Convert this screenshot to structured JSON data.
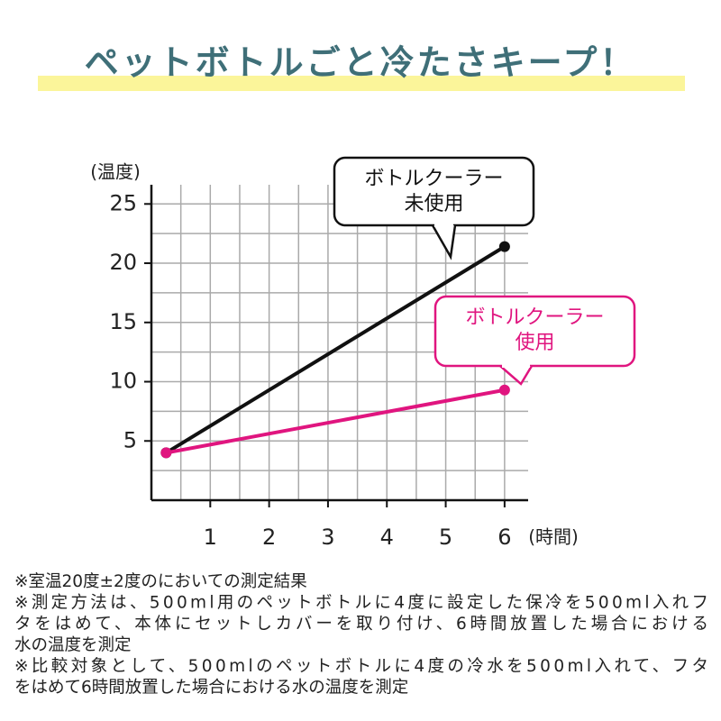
{
  "title": "ペットボトルごと冷たさキープ！",
  "chart_data": {
    "type": "line",
    "y_label": "(温度)",
    "x_label": "(時間)",
    "xlim": [
      0,
      6.4
    ],
    "ylim": [
      0,
      27
    ],
    "xticks": [
      1,
      2,
      3,
      4,
      5,
      6
    ],
    "yticks": [
      5,
      10,
      15,
      20,
      25
    ],
    "xgrid": [
      0.5,
      1,
      1.5,
      2,
      2.5,
      3,
      3.5,
      4,
      4.5,
      5,
      5.5,
      6
    ],
    "ygrid": [
      2.5,
      5,
      7.5,
      10,
      12.5,
      15,
      17.5,
      20,
      22.5,
      25
    ],
    "grid": true,
    "series": [
      {
        "label": [
          "ボトルクーラー",
          "未使用"
        ],
        "color": "#111111",
        "x": [
          0.25,
          6
        ],
        "values": [
          4,
          21.4
        ]
      },
      {
        "label": [
          "ボトルクーラー",
          "使用"
        ],
        "color": "#e0157f",
        "x": [
          0.25,
          6
        ],
        "values": [
          4,
          9.3
        ]
      }
    ]
  },
  "notes": [
    "※室温20度±2度のにおいての測定結果",
    "※測定方法は、500ml用のペットボトルに4度に設定した保冷を500ml入れフ",
    "タをはめて、本体にセットしカバーを取り付け、6時間放置した場合における",
    "水の温度を測定",
    "※比較対象として、500mlのペットボトルに4度の冷水を500ml入れて、フタ",
    "をはめて6時間放置した場合における水の温度を測定"
  ]
}
